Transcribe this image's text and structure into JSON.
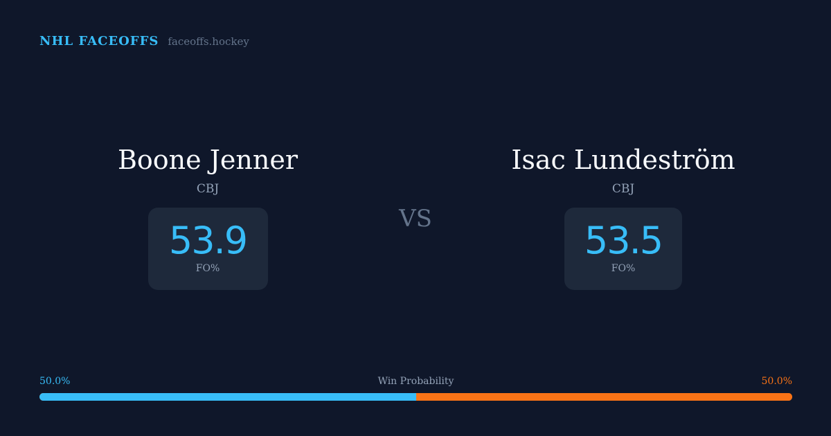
{
  "brand": {
    "name": "NHL FACEOFFS",
    "url": "faceoffs.hockey"
  },
  "players": [
    {
      "name": "Boone Jenner",
      "team": "CBJ",
      "fo_pct": "53.9",
      "fo_label": "FO%"
    },
    {
      "name": "Isac Lundeström",
      "team": "CBJ",
      "fo_pct": "53.5",
      "fo_label": "FO%"
    }
  ],
  "vs": "VS",
  "win_probability": {
    "label": "Win Probability",
    "left": "50.0%",
    "right": "50.0%",
    "left_fraction": 0.5,
    "colors": {
      "left": "#38bdf8",
      "right": "#f97316"
    }
  }
}
